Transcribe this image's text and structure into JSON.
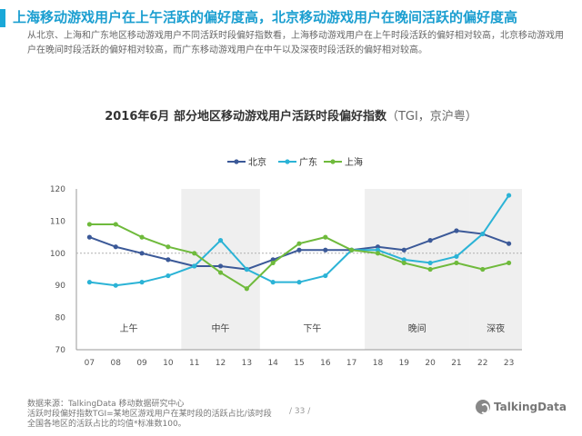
{
  "headline": "上海移动游戏用户在上午活跃的偏好度高，北京移动游戏用户在晚间活跃的偏好度高",
  "description": "从北京、上海和广东地区移动游戏用户不同活跃时段偏好指数看，上海移动游戏用户在上午时段活跃的偏好相对较高，北京移动游戏用户在晚间时段活跃的偏好相对较高，而广东移动游戏用户在中午以及深夜时段活跃的偏好相对较高。",
  "footer": {
    "source": "数据来源：TalkingData  移动数据研究中心",
    "note_line1": "活跃时段偏好指数TGI=某地区游戏用户在某时段的活跃占比/该时段",
    "note_line2": "全国各地区的活跃占比的均值*标准数100。",
    "page": "/ 33 /",
    "logo_text": "TalkingData"
  },
  "colors": {
    "accent": "#1aa8d8",
    "beijing": "#3b5998",
    "guangdong": "#2bb3d6",
    "shanghai": "#6fba3c"
  },
  "chart_data": {
    "type": "line",
    "title": "2016年6月 部分地区移动游戏用户活跃时段偏好指数",
    "title_unit": "（TGI，京沪粤）",
    "x": [
      "07",
      "08",
      "09",
      "10",
      "11",
      "12",
      "13",
      "14",
      "15",
      "16",
      "17",
      "18",
      "19",
      "20",
      "21",
      "22",
      "23"
    ],
    "ylim": [
      70,
      120
    ],
    "yticks": [
      70,
      80,
      90,
      100,
      110,
      120
    ],
    "baseline": 100,
    "series": [
      {
        "name": "北京",
        "values": [
          105,
          102,
          100,
          98,
          96,
          96,
          95,
          98,
          101,
          101,
          101,
          102,
          101,
          104,
          107,
          106,
          103
        ]
      },
      {
        "name": "广东",
        "values": [
          91,
          90,
          91,
          93,
          96,
          104,
          95,
          91,
          91,
          93,
          101,
          101,
          98,
          97,
          99,
          106,
          118
        ]
      },
      {
        "name": "上海",
        "values": [
          109,
          109,
          105,
          102,
          100,
          94,
          89,
          97,
          103,
          105,
          101,
          100,
          97,
          95,
          97,
          95,
          97
        ]
      }
    ],
    "periods": [
      {
        "label": "上午",
        "start": "07",
        "end": "10",
        "shaded": false
      },
      {
        "label": "中午",
        "start": "11",
        "end": "13",
        "shaded": true
      },
      {
        "label": "下午",
        "start": "14",
        "end": "17",
        "shaded": false
      },
      {
        "label": "晚间",
        "start": "18",
        "end": "21",
        "shaded": true
      },
      {
        "label": "深夜",
        "start": "22",
        "end": "23",
        "shaded": true
      }
    ],
    "legend_position": "top-center",
    "grid": false
  }
}
